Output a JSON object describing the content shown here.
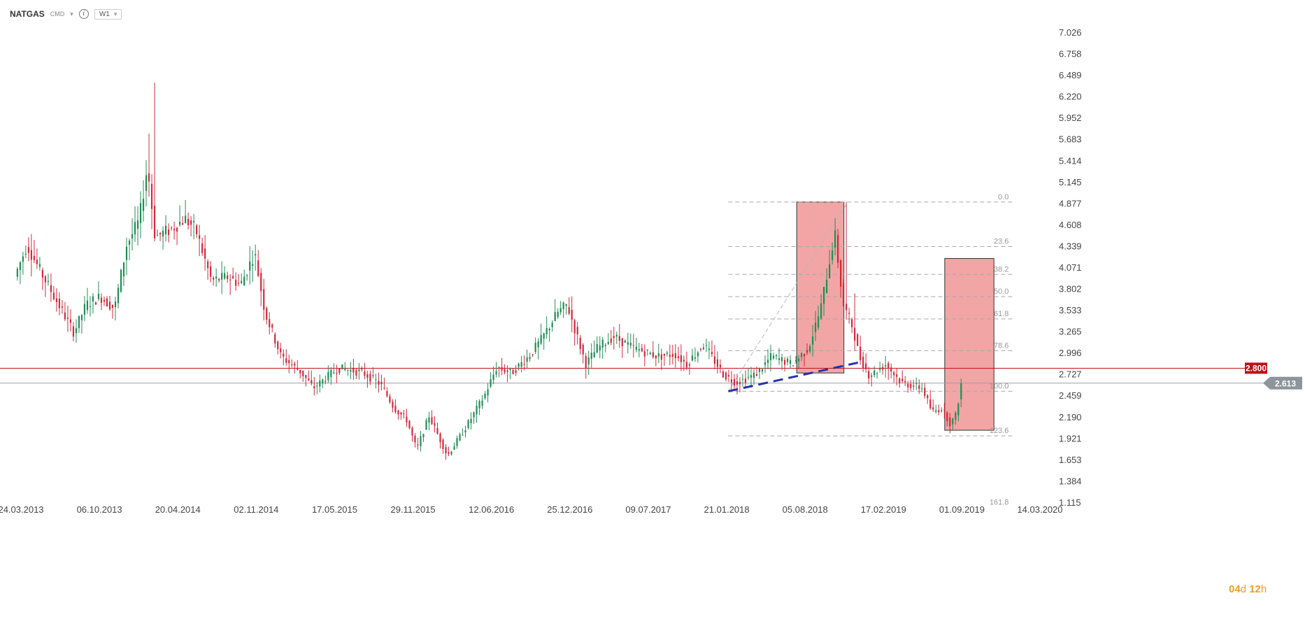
{
  "header": {
    "symbol": "NATGAS",
    "market": "CMD",
    "info_glyph": "i",
    "timeframe": "W1",
    "dropdown_icon": "chevron-down-icon"
  },
  "countdown": {
    "days": "04",
    "days_unit": "d",
    "hours": "12",
    "hours_unit": "h"
  },
  "colors": {
    "up": "#1e8f55",
    "down": "#d12a3a",
    "resistance": "#c0101a",
    "current": "#9aa0a6",
    "box": "#ef8f8f",
    "trend": "#2233aa",
    "fib": "#a8a8a8"
  },
  "chart_data": {
    "type": "candlestick",
    "instrument": "NATGAS",
    "timeframe": "W1",
    "y_ticks": [
      "7.026",
      "6.758",
      "6.489",
      "6.220",
      "5.952",
      "5.683",
      "5.414",
      "5.145",
      "4.877",
      "4.608",
      "4.339",
      "4.071",
      "3.802",
      "3.533",
      "3.265",
      "2.996",
      "2.727",
      "2.459",
      "2.190",
      "1.921",
      "1.653",
      "1.384",
      "1.115"
    ],
    "ylim": [
      1.115,
      7.026
    ],
    "x_ticks": [
      "24.03.2013",
      "06.10.2013",
      "20.04.2014",
      "02.11.2014",
      "17.05.2015",
      "29.11.2015",
      "12.06.2016",
      "25.12.2016",
      "09.07.2017",
      "21.01.2018",
      "05.08.2018",
      "17.02.2019",
      "01.09.2019",
      "14.03.2020"
    ],
    "levels": {
      "resistance": {
        "value": 2.8,
        "label": "2.800"
      },
      "current": {
        "value": 2.613,
        "label": "2.613"
      }
    },
    "fibonacci": [
      {
        "label": "0.0",
        "value": 4.89
      },
      {
        "label": "23.6",
        "value": 4.33
      },
      {
        "label": "38.2",
        "value": 3.98
      },
      {
        "label": "50.0",
        "value": 3.7
      },
      {
        "label": "61.8",
        "value": 3.42
      },
      {
        "label": "78.6",
        "value": 3.02
      },
      {
        "label": "100.0",
        "value": 2.51
      },
      {
        "label": "123.6",
        "value": 1.95
      },
      {
        "label": "161.8",
        "value": 1.05
      }
    ],
    "highlight_boxes": [
      {
        "from": "2018-07-15",
        "to": "2018-11-10",
        "low": 2.74,
        "high": 4.89
      },
      {
        "from": "2019-07-20",
        "to": "2019-11-20",
        "low": 2.02,
        "high": 4.18
      }
    ],
    "trendline": {
      "from": {
        "date": "2018-01-25",
        "value": 2.51
      },
      "to": {
        "date": "2018-12-15",
        "value": 2.87
      }
    },
    "fib_anchor": {
      "from": {
        "date": "2018-01-25",
        "value": 2.51
      },
      "to": {
        "date": "2018-11-20",
        "value": 4.89
      }
    },
    "anchors": [
      [
        "2013-03-15",
        3.95
      ],
      [
        "2013-04-15",
        4.35
      ],
      [
        "2013-05-15",
        4.05
      ],
      [
        "2013-07-05",
        3.58
      ],
      [
        "2013-08-10",
        3.25
      ],
      [
        "2013-09-10",
        3.6
      ],
      [
        "2013-10-15",
        3.7
      ],
      [
        "2013-11-20",
        3.55
      ],
      [
        "2013-12-20",
        4.35
      ],
      [
        "2014-01-20",
        4.65
      ],
      [
        "2014-02-10",
        5.35
      ],
      [
        "2014-03-01",
        4.45
      ],
      [
        "2014-04-10",
        4.55
      ],
      [
        "2014-05-15",
        4.68
      ],
      [
        "2014-06-10",
        4.55
      ],
      [
        "2014-07-20",
        3.9
      ],
      [
        "2014-09-01",
        3.95
      ],
      [
        "2014-10-01",
        3.85
      ],
      [
        "2014-11-05",
        4.25
      ],
      [
        "2014-12-01",
        3.5
      ],
      [
        "2015-01-10",
        2.95
      ],
      [
        "2015-03-01",
        2.75
      ],
      [
        "2015-04-01",
        2.55
      ],
      [
        "2015-06-01",
        2.8
      ],
      [
        "2015-08-01",
        2.75
      ],
      [
        "2015-09-15",
        2.6
      ],
      [
        "2015-10-20",
        2.3
      ],
      [
        "2015-11-20",
        2.15
      ],
      [
        "2015-12-15",
        1.78
      ],
      [
        "2016-01-15",
        2.2
      ],
      [
        "2016-03-01",
        1.7
      ],
      [
        "2016-04-15",
        2.05
      ],
      [
        "2016-06-01",
        2.45
      ],
      [
        "2016-07-01",
        2.8
      ],
      [
        "2016-08-10",
        2.75
      ],
      [
        "2016-09-20",
        2.95
      ],
      [
        "2016-10-20",
        3.15
      ],
      [
        "2016-12-01",
        3.5
      ],
      [
        "2016-12-25",
        3.6
      ],
      [
        "2017-02-10",
        2.85
      ],
      [
        "2017-03-10",
        3.05
      ],
      [
        "2017-04-20",
        3.2
      ],
      [
        "2017-06-10",
        3.05
      ],
      [
        "2017-08-10",
        2.95
      ],
      [
        "2017-09-20",
        2.98
      ],
      [
        "2017-10-20",
        2.85
      ],
      [
        "2017-12-01",
        3.1
      ],
      [
        "2018-01-20",
        2.72
      ],
      [
        "2018-02-20",
        2.62
      ],
      [
        "2018-04-10",
        2.72
      ],
      [
        "2018-05-20",
        2.95
      ],
      [
        "2018-07-10",
        2.85
      ],
      [
        "2018-08-20",
        3.05
      ],
      [
        "2018-09-20",
        3.55
      ],
      [
        "2018-10-10",
        4.1
      ],
      [
        "2018-10-25",
        4.5
      ],
      [
        "2018-11-15",
        3.6
      ],
      [
        "2018-12-10",
        3.3
      ],
      [
        "2018-12-25",
        2.95
      ],
      [
        "2019-01-20",
        2.7
      ],
      [
        "2019-03-01",
        2.85
      ],
      [
        "2019-04-10",
        2.62
      ],
      [
        "2019-06-01",
        2.55
      ],
      [
        "2019-06-25",
        2.25
      ],
      [
        "2019-07-20",
        2.3
      ],
      [
        "2019-08-10",
        2.1
      ],
      [
        "2019-08-25",
        2.22
      ],
      [
        "2019-09-05",
        2.6
      ]
    ],
    "spikes": [
      {
        "date": "2014-02-20",
        "high": 6.39
      },
      {
        "date": "2014-02-10",
        "high": 5.75
      },
      {
        "date": "2018-11-15",
        "high": 4.89
      },
      {
        "date": "2018-12-10",
        "high": 3.74
      }
    ]
  }
}
